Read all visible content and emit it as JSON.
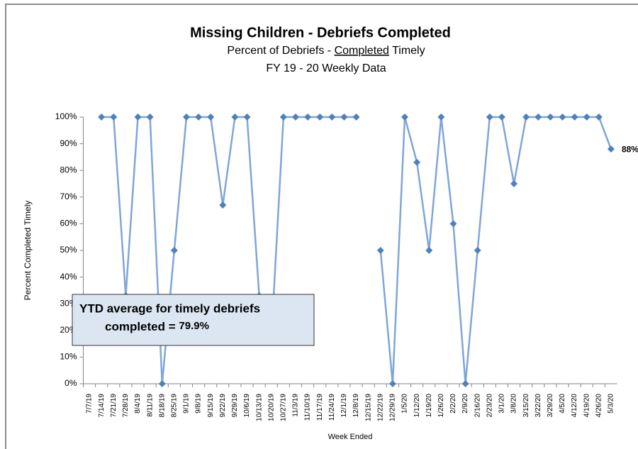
{
  "chart_data": {
    "type": "line",
    "title": "Missing Children - Debriefs Completed",
    "subtitle": [
      "Percent of Debriefs - ",
      "Completed",
      " Timely"
    ],
    "subtitle2": "FY 19 - 20  Weekly Data",
    "x_label": "Week Ended",
    "y_label": "Percent Completed Timely",
    "annotation": [
      "YTD average for timely debriefs",
      "completed = ",
      "79.9%"
    ],
    "categories": [
      "7/7/19",
      "7/14/19",
      "7/21/19",
      "7/28/19",
      "8/4/19",
      "8/11/19",
      "8/18/19",
      "8/25/19",
      "9/1/19",
      "9/8/19",
      "9/15/19",
      "9/22/19",
      "9/29/19",
      "10/6/19",
      "10/13/19",
      "10/20/19",
      "10/27/19",
      "11/3/19",
      "11/10/19",
      "11/17/19",
      "11/24/19",
      "12/1/19",
      "12/8/19",
      "12/15/19",
      "12/22/19",
      "12/29/19",
      "1/5/20",
      "1/12/20",
      "1/19/20",
      "1/26/20",
      "2/2/20",
      "2/9/20",
      "2/16/20",
      "2/23/20",
      "3/1/20",
      "3/8/20",
      "3/15/20",
      "3/22/20",
      "3/29/20",
      "4/5/20",
      "4/12/20",
      "4/19/20",
      "4/26/20",
      "5/3/20"
    ],
    "series": [
      {
        "name": "Percent Completed Timely",
        "color": "#7ea6d8",
        "marker_color": "#4f81bd",
        "values": [
          null,
          100,
          100,
          33,
          100,
          100,
          0,
          50,
          100,
          100,
          100,
          67,
          100,
          100,
          33,
          17,
          100,
          100,
          100,
          100,
          100,
          100,
          100,
          null,
          50,
          0,
          100,
          83,
          50,
          100,
          60,
          0,
          50,
          100,
          100,
          75,
          100,
          100,
          100,
          100,
          100,
          100,
          100,
          88
        ],
        "value_labels": [
          null,
          null,
          null,
          null,
          null,
          null,
          null,
          null,
          null,
          null,
          null,
          null,
          null,
          null,
          null,
          null,
          null,
          null,
          null,
          null,
          null,
          null,
          null,
          null,
          null,
          null,
          null,
          null,
          null,
          null,
          null,
          null,
          null,
          null,
          null,
          null,
          null,
          null,
          null,
          null,
          null,
          null,
          null,
          "88%"
        ]
      }
    ],
    "ylim": [
      0,
      100
    ],
    "yticks": [
      {
        "value": 0,
        "label": "0%"
      },
      {
        "value": 10,
        "label": "10%"
      },
      {
        "value": 20,
        "label": "20%"
      },
      {
        "value": 30,
        "label": "30%"
      },
      {
        "value": 40,
        "label": "40%"
      },
      {
        "value": 50,
        "label": "50%"
      },
      {
        "value": 60,
        "label": "60%"
      },
      {
        "value": 70,
        "label": "70%"
      },
      {
        "value": 80,
        "label": "80%"
      },
      {
        "value": 90,
        "label": "90%"
      },
      {
        "value": 100,
        "label": "100%"
      }
    ],
    "grid": false
  }
}
